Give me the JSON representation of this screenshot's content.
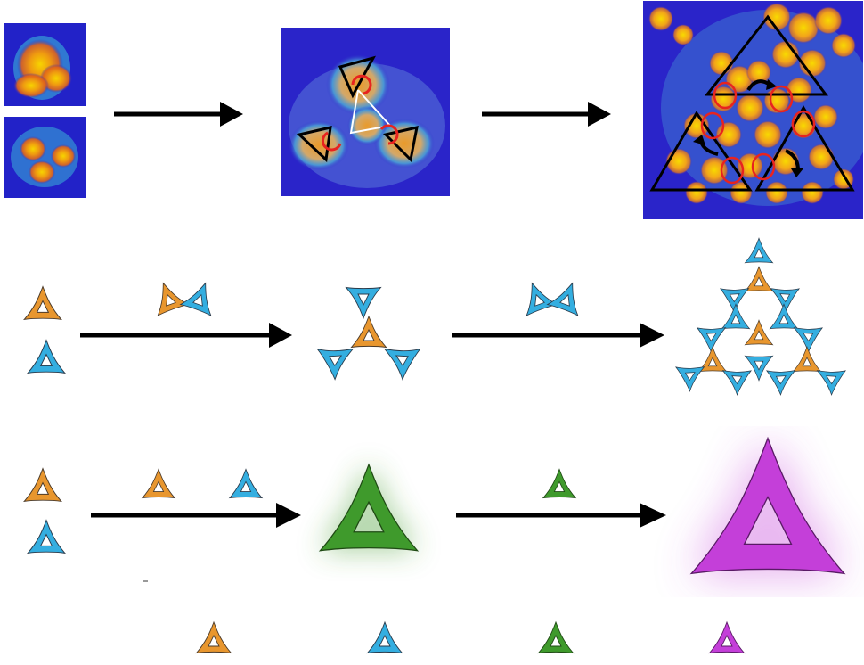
{
  "colors": {
    "orange": "#e8962e",
    "blue": "#34aee0",
    "green": "#3f9a2c",
    "magenta": "#c43fd9",
    "afm_background": "#2020c8",
    "afm_particle_core": "#f5c800",
    "afm_particle_edge": "#e98a00",
    "marker_red": "#e8231f",
    "arrow": "#000000"
  },
  "icons": {
    "tripod_tile": "three-armed-curved-triangle-icon",
    "reaction_arrow": "right-arrow-icon",
    "rotation_marker": "curved-rotation-arrow-icon",
    "bond_marker": "red-ellipse-icon",
    "outline_triangle": "black-outline-triangle-icon"
  },
  "rows": {
    "afm": {
      "stages": 3,
      "insets": 2
    },
    "tiles": {
      "stages": 3
    },
    "hierarchical": {
      "stages": 3
    },
    "legend": {
      "tiles": [
        "orange",
        "blue",
        "green",
        "magenta"
      ]
    }
  }
}
